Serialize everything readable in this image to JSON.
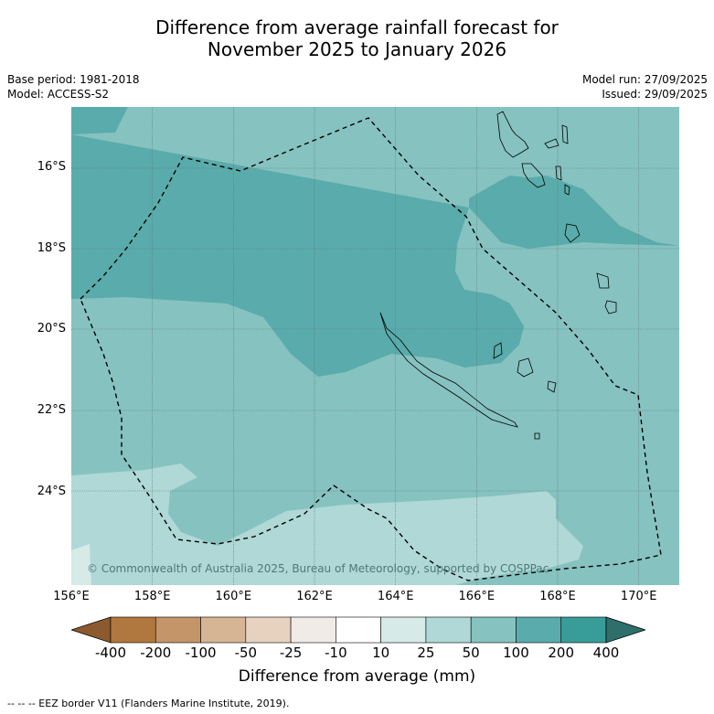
{
  "header": {
    "title_line1": "Difference from average rainfall forecast for",
    "title_line2": "November 2025 to January 2026"
  },
  "meta_left": {
    "base_period": "Base period: 1981-2018",
    "model": "Model: ACCESS-S2"
  },
  "meta_right": {
    "model_run": "Model run: 27/09/2025",
    "issued": "Issued: 29/09/2025"
  },
  "map": {
    "copyright": "© Commonwealth of Australia 2025, Bureau of Meteorology, supported by COSPPac",
    "lat_labels": [
      "16°S",
      "18°S",
      "20°S",
      "22°S",
      "24°S"
    ],
    "lon_labels": [
      "156°E",
      "158°E",
      "160°E",
      "162°E",
      "164°E",
      "166°E",
      "168°E",
      "170°E"
    ],
    "extent": {
      "lon_min": 156.0,
      "lon_max": 171.0,
      "lat_min": -26.2,
      "lat_max": -14.5
    }
  },
  "colorbar": {
    "labels": [
      "-400",
      "-200",
      "-100",
      "-50",
      "-25",
      "-10",
      "10",
      "25",
      "50",
      "100",
      "200",
      "400"
    ],
    "colors": [
      "#8c5a2e",
      "#b0773f",
      "#c49569",
      "#d6b595",
      "#e6d2bf",
      "#f0ebe6",
      "#ffffff",
      "#d6eae8",
      "#afd8d6",
      "#86c2c0",
      "#5aabab",
      "#389c98",
      "#2e6f6c"
    ],
    "title": "Difference from average (mm)"
  },
  "footer": {
    "legend": "--  --  -- EEZ border V11 (Flanders Marine Institute, 2019)."
  }
}
